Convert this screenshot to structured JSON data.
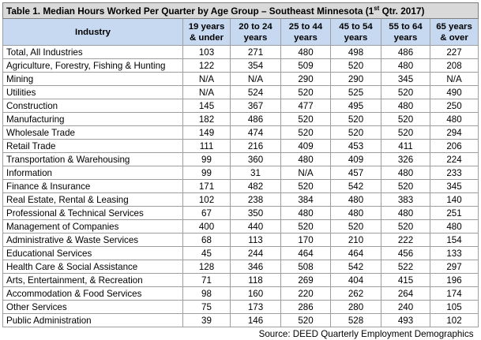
{
  "table": {
    "caption_main": "Table 1. Median Hours Worked Per Quarter by Age Group – Southeast Minnesota (1",
    "caption_sup": "st",
    "caption_tail": " Qtr. 2017)",
    "headers": [
      {
        "line1": "Industry",
        "line2": ""
      },
      {
        "line1": "19 years",
        "line2": "& under"
      },
      {
        "line1": "20 to 24",
        "line2": "years"
      },
      {
        "line1": "25 to 44",
        "line2": "years"
      },
      {
        "line1": "45 to 54",
        "line2": "years"
      },
      {
        "line1": "55 to 64",
        "line2": "years"
      },
      {
        "line1": "65 years",
        "line2": "& over"
      }
    ],
    "rows": [
      [
        "Total, All Industries",
        "103",
        "271",
        "480",
        "498",
        "486",
        "227"
      ],
      [
        "Agriculture, Forestry, Fishing & Hunting",
        "122",
        "354",
        "509",
        "520",
        "480",
        "208"
      ],
      [
        "Mining",
        "N/A",
        "N/A",
        "290",
        "290",
        "345",
        "N/A"
      ],
      [
        "Utilities",
        "N/A",
        "524",
        "520",
        "525",
        "520",
        "490"
      ],
      [
        "Construction",
        "145",
        "367",
        "477",
        "495",
        "480",
        "250"
      ],
      [
        "Manufacturing",
        "182",
        "486",
        "520",
        "520",
        "520",
        "480"
      ],
      [
        "Wholesale Trade",
        "149",
        "474",
        "520",
        "520",
        "520",
        "294"
      ],
      [
        "Retail Trade",
        "111",
        "216",
        "409",
        "453",
        "411",
        "206"
      ],
      [
        "Transportation & Warehousing",
        "99",
        "360",
        "480",
        "409",
        "326",
        "224"
      ],
      [
        "Information",
        "99",
        "31",
        "N/A",
        "457",
        "480",
        "233"
      ],
      [
        "Finance & Insurance",
        "171",
        "482",
        "520",
        "542",
        "520",
        "345"
      ],
      [
        "Real Estate, Rental & Leasing",
        "102",
        "238",
        "384",
        "480",
        "383",
        "140"
      ],
      [
        "Professional & Technical Services",
        "67",
        "350",
        "480",
        "480",
        "480",
        "251"
      ],
      [
        "Management of Companies",
        "400",
        "440",
        "520",
        "520",
        "520",
        "480"
      ],
      [
        "Administrative & Waste Services",
        "68",
        "113",
        "170",
        "210",
        "222",
        "154"
      ],
      [
        "Educational Services",
        "45",
        "244",
        "464",
        "464",
        "456",
        "133"
      ],
      [
        "Health Care & Social Assistance",
        "128",
        "346",
        "508",
        "542",
        "522",
        "297"
      ],
      [
        "Arts, Entertainment, & Recreation",
        "71",
        "118",
        "269",
        "404",
        "415",
        "196"
      ],
      [
        "Accommodation & Food Services",
        "98",
        "160",
        "220",
        "262",
        "264",
        "174"
      ],
      [
        "Other Services",
        "75",
        "173",
        "286",
        "280",
        "240",
        "105"
      ],
      [
        "Public Administration",
        "39",
        "146",
        "520",
        "528",
        "493",
        "102"
      ]
    ],
    "source": "Source: DEED Quarterly Employment Demographics"
  },
  "colors": {
    "caption_bg": "#d9d9d9",
    "header_bg": "#c6d9f1",
    "border": "#9e9e9e"
  }
}
